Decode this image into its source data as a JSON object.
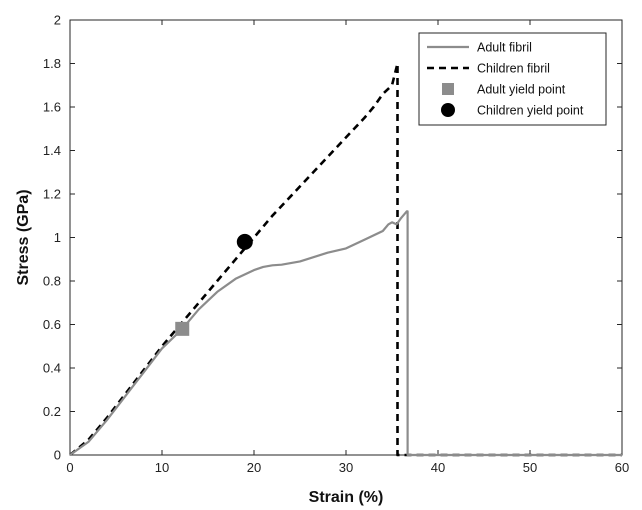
{
  "chart_data": {
    "type": "line",
    "xlabel": "Strain (%)",
    "ylabel": "Stress (GPa)",
    "xlim": [
      0,
      60
    ],
    "ylim": [
      0,
      2
    ],
    "xticks": [
      0,
      10,
      20,
      30,
      40,
      50,
      60
    ],
    "yticks": [
      0,
      0.2,
      0.4,
      0.6,
      0.8,
      1,
      1.2,
      1.4,
      1.6,
      1.8,
      2
    ],
    "ytick_labels": [
      "0",
      "0.2",
      "0.4",
      "0.6",
      "0.8",
      "1",
      "1.2",
      "1.4",
      "1.6",
      "1.8",
      "2"
    ],
    "grid": false,
    "legend_position": "top-right",
    "series": [
      {
        "name": "Adult fibril",
        "style": "solid",
        "color": "#8c8c8c",
        "x": [
          0,
          2,
          4,
          6,
          8,
          10,
          12.2,
          14,
          16,
          18,
          20,
          21,
          22,
          23,
          25,
          28,
          30,
          32,
          34,
          34.6,
          35,
          35.5,
          36,
          36.6,
          36.7,
          36.7,
          40,
          50,
          60
        ],
        "y": [
          0,
          0.06,
          0.16,
          0.27,
          0.38,
          0.49,
          0.58,
          0.67,
          0.75,
          0.81,
          0.85,
          0.865,
          0.872,
          0.875,
          0.89,
          0.93,
          0.95,
          0.99,
          1.03,
          1.06,
          1.07,
          1.06,
          1.09,
          1.12,
          1.12,
          0,
          0,
          0,
          0
        ]
      },
      {
        "name": "Children fibril",
        "style": "dashed",
        "color": "#000000",
        "x": [
          0,
          2,
          4,
          6,
          8,
          10,
          12,
          14,
          16,
          18,
          20,
          22,
          24,
          26,
          28,
          30,
          32,
          33,
          34,
          35,
          35.6,
          35.6,
          40,
          50,
          60
        ],
        "y": [
          0,
          0.07,
          0.17,
          0.28,
          0.39,
          0.5,
          0.6,
          0.7,
          0.8,
          0.9,
          1.0,
          1.1,
          1.19,
          1.28,
          1.37,
          1.46,
          1.55,
          1.6,
          1.66,
          1.7,
          1.8,
          0,
          0,
          0,
          0
        ]
      },
      {
        "name": "Adult yield point",
        "type": "marker",
        "marker": "square",
        "color": "#8c8c8c",
        "x": [
          12.2
        ],
        "y": [
          0.58
        ]
      },
      {
        "name": "Children yield point",
        "type": "marker",
        "marker": "circle",
        "color": "#000000",
        "x": [
          19
        ],
        "y": [
          0.98
        ]
      }
    ]
  }
}
